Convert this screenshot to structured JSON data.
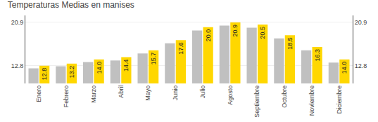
{
  "chart_data": {
    "type": "bar",
    "title": "Temperaturas Medias en manises",
    "categories": [
      "Enero",
      "Febrero",
      "Marzo",
      "Abril",
      "Mayo",
      "Junio",
      "Julio",
      "Agosto",
      "Septiembre",
      "Octubre",
      "Noviembre",
      "Diciembre"
    ],
    "series": [
      {
        "color": "#C0C0C0",
        "values": [
          12.3,
          12.7,
          13.5,
          13.8,
          15.1,
          17.0,
          19.4,
          20.3,
          19.9,
          17.9,
          15.7,
          13.4
        ]
      },
      {
        "color": "#FFD700",
        "values": [
          12.8,
          13.2,
          14.0,
          14.4,
          15.7,
          17.6,
          20.0,
          20.9,
          20.5,
          18.5,
          16.3,
          14.0
        ],
        "data_labels": true,
        "value_labels": [
          "12.8",
          "13.2",
          "14.0",
          "14.4",
          "15.7",
          "17.6",
          "20.0",
          "20.9",
          "20.5",
          "18.5",
          "16.3",
          "14.0"
        ]
      }
    ],
    "ylim": [
      9.5,
      22.2
    ],
    "yticks": [
      12.8,
      20.9
    ],
    "y2lim": [
      9.5,
      22.2
    ],
    "y2ticks": [
      12.8,
      20.9
    ],
    "grid": true
  }
}
